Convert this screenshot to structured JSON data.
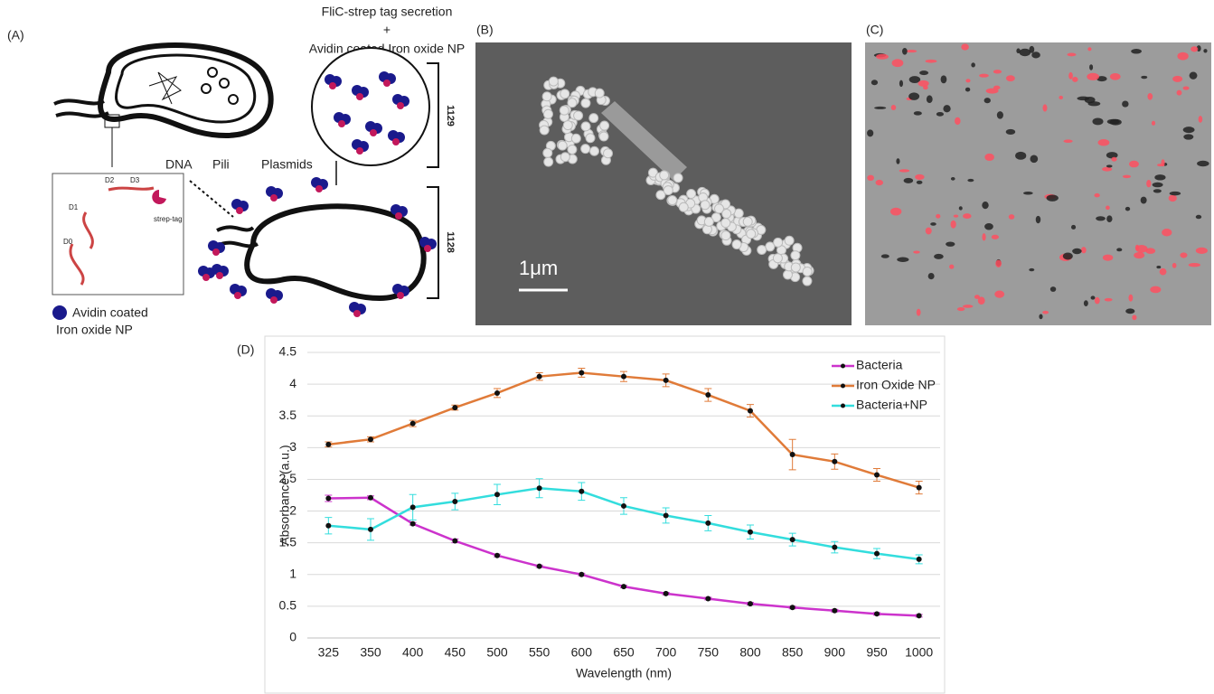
{
  "panels": {
    "a": {
      "label": "(A)",
      "secretion_title": "FliC-strep tag secretion",
      "plus": "+",
      "secretion_subtitle": "Avidin coated Iron oxide NP",
      "strain_top": "1129",
      "strain_bottom": "1128",
      "dna": "DNA",
      "pili": "Pili",
      "plasmids": "Plasmids",
      "domains": [
        "D0",
        "D1",
        "D2",
        "D3"
      ],
      "strep_tag": "strep-tag",
      "legend_line1": "Avidin coated",
      "legend_line2": "Iron oxide NP"
    },
    "b": {
      "label": "(B)",
      "scale_bar": "1μm"
    },
    "c": {
      "label": "(C)"
    }
  },
  "chart_data": {
    "type": "line",
    "label": "(D)",
    "x_label": "Wavelength  (nm)",
    "y_label": "Absorbance (a.u.)",
    "categories": [
      "325",
      "350",
      "400",
      "450",
      "500",
      "550",
      "600",
      "650",
      "700",
      "750",
      "800",
      "850",
      "900",
      "950",
      "1000"
    ],
    "series": [
      {
        "name": "Bacteria",
        "color": "#cc33cc",
        "values": [
          2.2,
          2.21,
          1.8,
          1.53,
          1.3,
          1.13,
          1.0,
          0.81,
          0.7,
          0.62,
          0.54,
          0.48,
          0.43,
          0.38,
          0.35
        ],
        "errors": [
          0.05,
          0.03,
          0.02,
          0.03,
          0.02,
          0.02,
          0.02,
          0.02,
          0.02,
          0.02,
          0.02,
          0.02,
          0.02,
          0.02,
          0.02
        ]
      },
      {
        "name": "Iron Oxide NP",
        "color": "#e07b39",
        "values": [
          3.05,
          3.13,
          3.38,
          3.63,
          3.86,
          4.12,
          4.18,
          4.12,
          4.06,
          3.83,
          3.58,
          2.89,
          2.78,
          2.57,
          2.37
        ],
        "errors": [
          0.04,
          0.04,
          0.05,
          0.04,
          0.07,
          0.06,
          0.07,
          0.08,
          0.1,
          0.1,
          0.1,
          0.24,
          0.12,
          0.1,
          0.1
        ]
      },
      {
        "name": "Bacteria+NP",
        "color": "#33dddd",
        "values": [
          1.77,
          1.71,
          2.06,
          2.15,
          2.26,
          2.36,
          2.31,
          2.08,
          1.93,
          1.81,
          1.67,
          1.55,
          1.43,
          1.33,
          1.24
        ],
        "errors": [
          0.13,
          0.17,
          0.2,
          0.13,
          0.16,
          0.15,
          0.14,
          0.13,
          0.12,
          0.12,
          0.11,
          0.1,
          0.09,
          0.08,
          0.07
        ]
      }
    ],
    "ylim": [
      0,
      4.5
    ],
    "yticks": [
      0,
      0.5,
      1,
      1.5,
      2,
      2.5,
      3,
      3.5,
      4,
      4.5
    ],
    "grid": true,
    "legend": "top-right"
  }
}
